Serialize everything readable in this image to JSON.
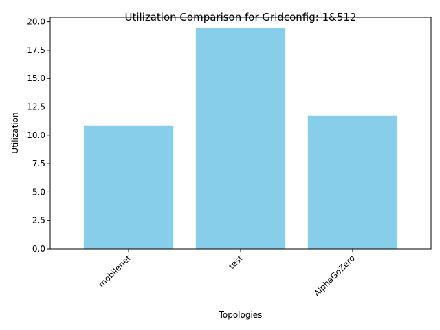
{
  "chart_data": {
    "type": "bar",
    "title": "Utilization Comparison for Gridconfig: 1&512",
    "xlabel": "Topologies",
    "ylabel": "Utilization",
    "categories": [
      "mobilenet",
      "test",
      "AlphaGoZero"
    ],
    "values": [
      10.85,
      19.45,
      11.7
    ],
    "ylim": [
      0,
      20.4
    ],
    "yticks": [
      0.0,
      2.5,
      5.0,
      7.5,
      10.0,
      12.5,
      15.0,
      17.5,
      20.0
    ],
    "bar_color": "#87ceeb",
    "grid": false,
    "legend": "none"
  }
}
